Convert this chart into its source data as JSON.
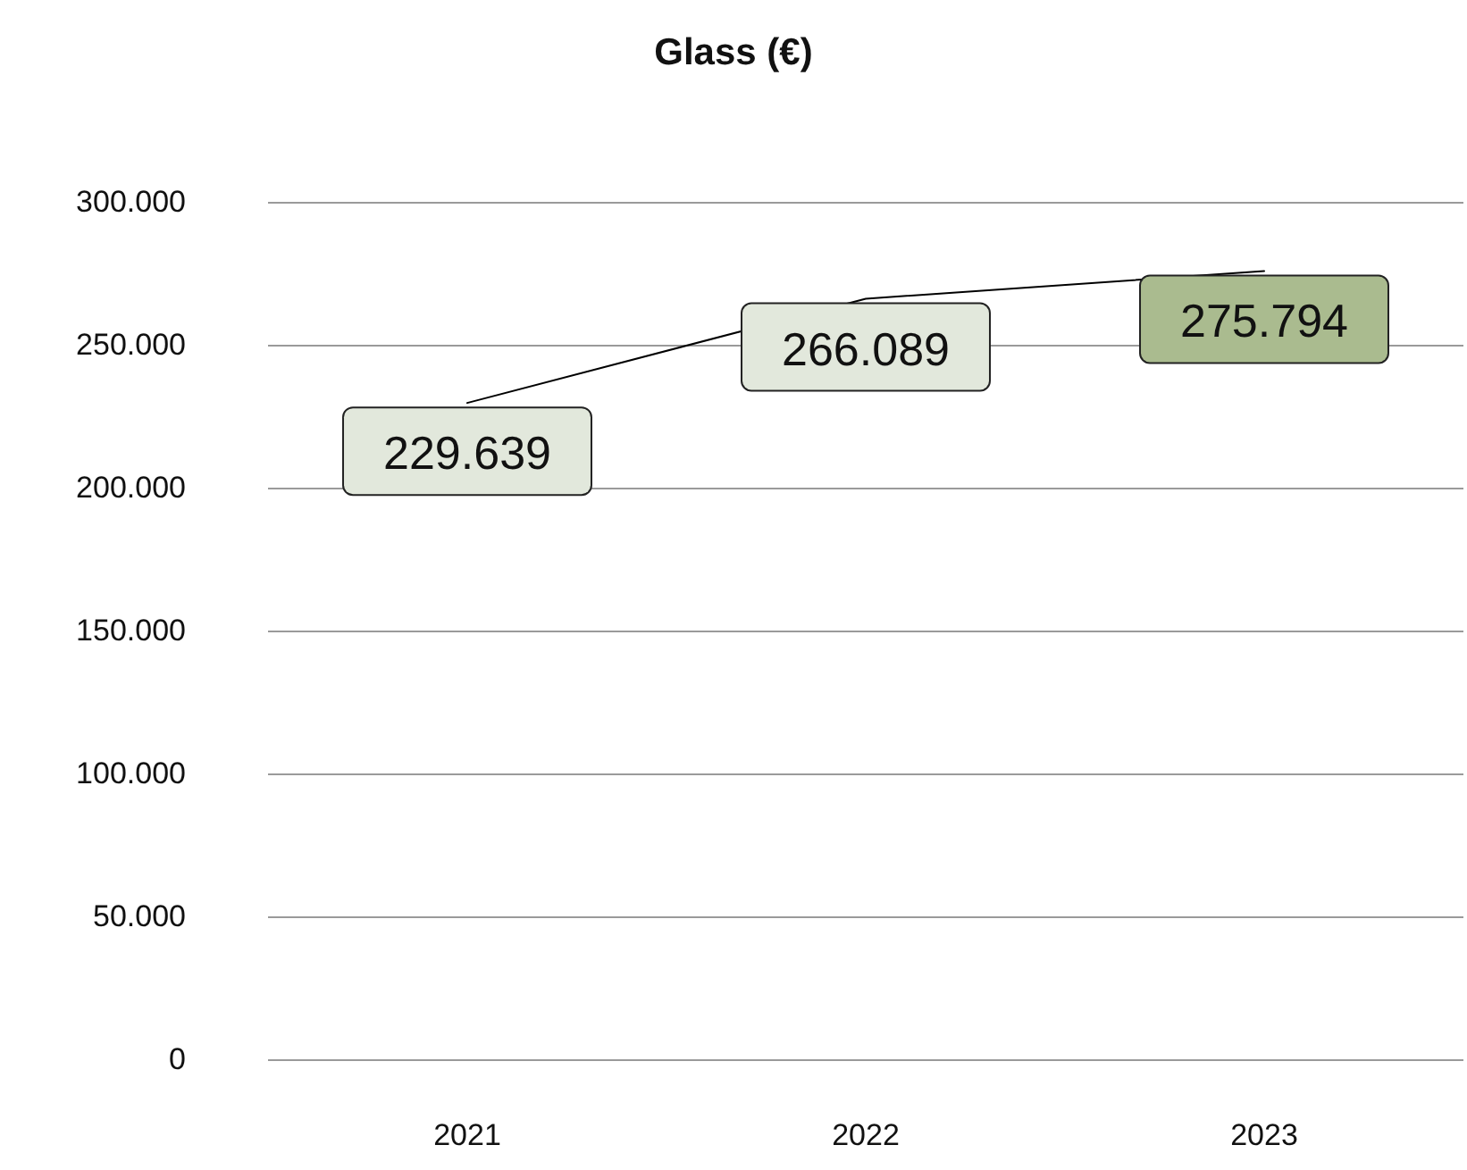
{
  "chart_data": {
    "type": "line",
    "title": "Glass (€)",
    "categories": [
      "2021",
      "2022",
      "2023"
    ],
    "series": [
      {
        "color": "#000000",
        "values": [
          229639,
          266089,
          275794
        ],
        "value_labels": [
          "229.639",
          "266.089",
          "275.794"
        ]
      }
    ],
    "ylim": [
      0,
      300000
    ],
    "yticks": [
      {
        "value": 0,
        "label": "0"
      },
      {
        "value": 50000,
        "label": "50.000"
      },
      {
        "value": 100000,
        "label": "100.000"
      },
      {
        "value": 150000,
        "label": "150.000"
      },
      {
        "value": 200000,
        "label": "200.000"
      },
      {
        "value": 250000,
        "label": "250.000"
      },
      {
        "value": 300000,
        "label": "300.000"
      }
    ],
    "grid": "y",
    "marker": "none",
    "line_style": "solid"
  }
}
